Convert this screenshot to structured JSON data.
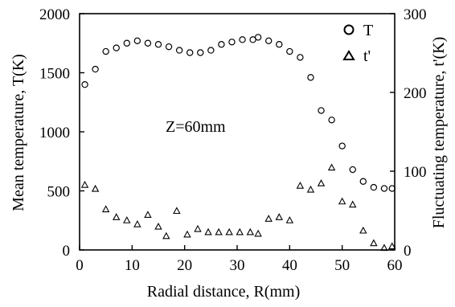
{
  "chart_data": {
    "type": "scatter",
    "title": "",
    "annotation": "Z=60mm",
    "xlabel": "Radial distance, R(mm)",
    "ylabel": "Mean temperature, T(K)",
    "y2label": "Fluctuating temperature, t'(K)",
    "xlim": [
      0,
      60
    ],
    "ylim": [
      0,
      2000
    ],
    "y2lim": [
      0,
      300
    ],
    "xticks": [
      0,
      10,
      20,
      30,
      40,
      50,
      60
    ],
    "yticks": [
      0,
      500,
      1000,
      1500,
      2000
    ],
    "y2ticks": [
      0,
      100,
      200,
      300
    ],
    "legend": {
      "placement": "top-right",
      "entries": [
        {
          "name": "T",
          "marker": "circle"
        },
        {
          "name": "t'",
          "marker": "triangle"
        }
      ]
    },
    "series": [
      {
        "name": "T",
        "axis": "left",
        "marker": "circle",
        "points": [
          [
            1,
            1400
          ],
          [
            3,
            1530
          ],
          [
            5,
            1680
          ],
          [
            7,
            1710
          ],
          [
            9,
            1750
          ],
          [
            11,
            1770
          ],
          [
            13,
            1750
          ],
          [
            15,
            1740
          ],
          [
            17,
            1720
          ],
          [
            19,
            1690
          ],
          [
            21,
            1670
          ],
          [
            23,
            1670
          ],
          [
            25,
            1690
          ],
          [
            27,
            1740
          ],
          [
            29,
            1760
          ],
          [
            31,
            1780
          ],
          [
            33,
            1780
          ],
          [
            34,
            1800
          ],
          [
            36,
            1770
          ],
          [
            38,
            1740
          ],
          [
            40,
            1680
          ],
          [
            42,
            1630
          ],
          [
            44,
            1460
          ],
          [
            46,
            1180
          ],
          [
            48,
            1100
          ],
          [
            50,
            880
          ],
          [
            52,
            680
          ],
          [
            54,
            580
          ],
          [
            56,
            530
          ],
          [
            58,
            520
          ],
          [
            59.5,
            520
          ]
        ]
      },
      {
        "name": "t'",
        "axis": "right",
        "marker": "triangle",
        "points": [
          [
            1,
            83
          ],
          [
            3,
            78
          ],
          [
            5,
            52
          ],
          [
            7,
            42
          ],
          [
            9,
            38
          ],
          [
            11,
            33
          ],
          [
            13,
            45
          ],
          [
            15,
            30
          ],
          [
            16.5,
            18
          ],
          [
            18.5,
            50
          ],
          [
            20.5,
            20
          ],
          [
            22.5,
            27
          ],
          [
            24.5,
            23
          ],
          [
            26.5,
            23
          ],
          [
            28.5,
            23
          ],
          [
            30.5,
            23
          ],
          [
            32.5,
            23
          ],
          [
            34,
            21
          ],
          [
            36,
            40
          ],
          [
            38,
            42
          ],
          [
            40,
            38
          ],
          [
            42,
            82
          ],
          [
            44,
            77
          ],
          [
            46,
            85
          ],
          [
            48,
            105
          ],
          [
            50,
            62
          ],
          [
            52,
            58
          ],
          [
            54,
            25
          ],
          [
            56,
            9
          ],
          [
            58,
            3
          ],
          [
            59.5,
            5
          ]
        ]
      }
    ]
  }
}
